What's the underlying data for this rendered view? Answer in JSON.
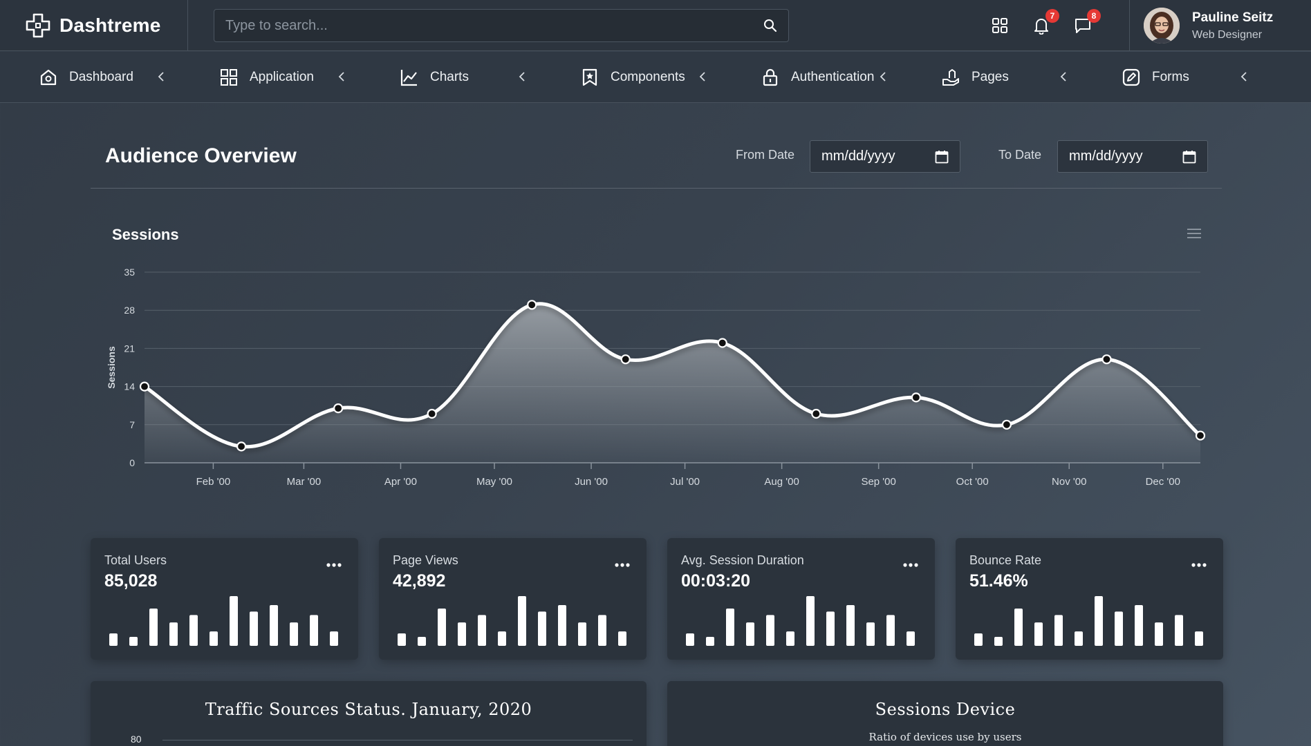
{
  "header": {
    "brand": "Dashtreme",
    "search_placeholder": "Type to search...",
    "notifications_count": "7",
    "messages_count": "8",
    "user": {
      "name": "Pauline Seitz",
      "role": "Web Designer"
    }
  },
  "nav": {
    "items": [
      {
        "label": "Dashboard",
        "icon": "home-icon"
      },
      {
        "label": "Application",
        "icon": "grid-icon"
      },
      {
        "label": "Charts",
        "icon": "line-chart-icon"
      },
      {
        "label": "Components",
        "icon": "bookmark-star-icon"
      },
      {
        "label": "Authentication",
        "icon": "lock-icon"
      },
      {
        "label": "Pages",
        "icon": "hand-pages-icon"
      },
      {
        "label": "Forms",
        "icon": "edit-icon"
      }
    ]
  },
  "overview": {
    "title": "Audience Overview",
    "from_label": "From Date",
    "to_label": "To Date",
    "from_value": "mm/dd/yyyy",
    "to_value": "mm/dd/yyyy"
  },
  "chart_data": {
    "type": "area",
    "title": "Sessions",
    "ylabel": "Sessions",
    "xlabel": "",
    "ylim": [
      0,
      35
    ],
    "yticks": [
      0,
      7,
      14,
      21,
      28,
      35
    ],
    "x_labels": [
      "Feb '00",
      "Mar '00",
      "Apr '00",
      "May '00",
      "Jun '00",
      "Jul '00",
      "Aug '00",
      "Sep '00",
      "Oct '00",
      "Nov '00",
      "Dec '00"
    ],
    "x_dates": [
      "2000-01-10",
      "2000-02-10",
      "2000-03-12",
      "2000-04-11",
      "2000-05-13",
      "2000-06-12",
      "2000-07-13",
      "2000-08-12",
      "2000-09-13",
      "2000-10-12",
      "2000-11-13",
      "2000-12-13"
    ],
    "values": [
      14,
      3,
      10,
      9,
      29,
      19,
      22,
      9,
      12,
      7,
      19,
      5
    ],
    "grid": true,
    "legend": "none",
    "line_color": "#ffffff",
    "area_color": "#9aa0a6"
  },
  "stats": [
    {
      "label": "Total Users",
      "value": "85,028",
      "bars": [
        0.25,
        0.18,
        0.75,
        0.47,
        0.62,
        0.29,
        1.0,
        0.69,
        0.82,
        0.47,
        0.62,
        0.29
      ]
    },
    {
      "label": "Page Views",
      "value": "42,892",
      "bars": [
        0.25,
        0.18,
        0.75,
        0.47,
        0.62,
        0.29,
        1.0,
        0.69,
        0.82,
        0.47,
        0.62,
        0.29
      ]
    },
    {
      "label": "Avg. Session Duration",
      "value": "00:03:20",
      "bars": [
        0.25,
        0.18,
        0.75,
        0.47,
        0.62,
        0.29,
        1.0,
        0.69,
        0.82,
        0.47,
        0.62,
        0.29
      ]
    },
    {
      "label": "Bounce Rate",
      "value": "51.46%",
      "bars": [
        0.25,
        0.18,
        0.75,
        0.47,
        0.62,
        0.29,
        1.0,
        0.69,
        0.82,
        0.47,
        0.62,
        0.29
      ]
    }
  ],
  "panels": {
    "traffic": {
      "title": "Traffic Sources Status. January, 2020",
      "first_tick": "80"
    },
    "devices": {
      "title": "Sessions Device",
      "subtitle": "Ratio of devices use by users"
    }
  }
}
